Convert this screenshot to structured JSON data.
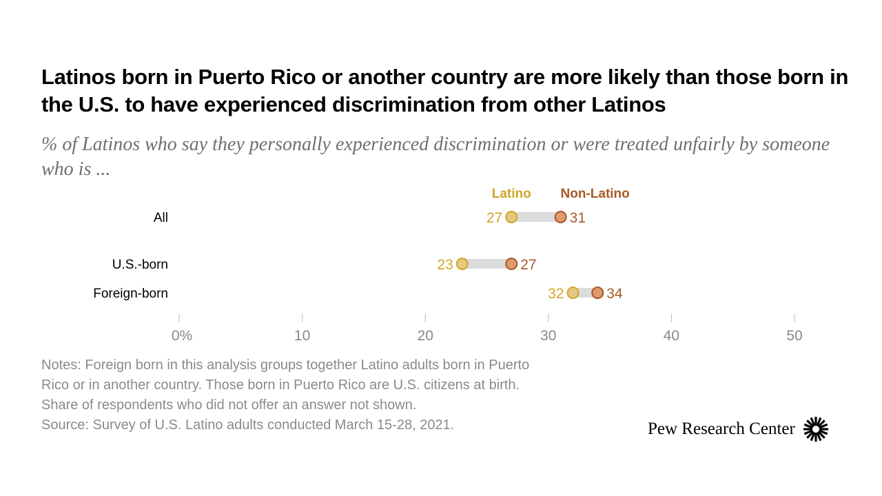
{
  "title": "Latinos born in Puerto Rico or another country are more likely than those born in the U.S. to have experienced discrimination from other Latinos",
  "subtitle": "% of Latinos who say they personally experienced discrimination or were treated unfairly by someone who is ...",
  "chart_data": {
    "type": "dot-range",
    "categories": [
      "All",
      "U.S.-born",
      "Foreign-born"
    ],
    "series": [
      {
        "name": "Latino",
        "values": [
          27,
          23,
          32
        ],
        "color": "#cfa52b"
      },
      {
        "name": "Non-Latino",
        "values": [
          31,
          27,
          34
        ],
        "color": "#a65a26"
      }
    ],
    "xlim": [
      0,
      50
    ],
    "xticks": [
      "0%",
      "10",
      "20",
      "30",
      "40",
      "50"
    ],
    "xtick_values": [
      0,
      10,
      20,
      30,
      40,
      50
    ],
    "legend": "top"
  },
  "notes": [
    "Notes: Foreign born in this analysis groups together Latino adults born in Puerto",
    "Rico or in another country. Those born in Puerto Rico are U.S. citizens at birth.",
    "Share of respondents who did not offer an answer not shown.",
    "Source: Survey of U.S. Latino adults conducted March 15-28, 2021."
  ],
  "logo": "Pew Research Center"
}
